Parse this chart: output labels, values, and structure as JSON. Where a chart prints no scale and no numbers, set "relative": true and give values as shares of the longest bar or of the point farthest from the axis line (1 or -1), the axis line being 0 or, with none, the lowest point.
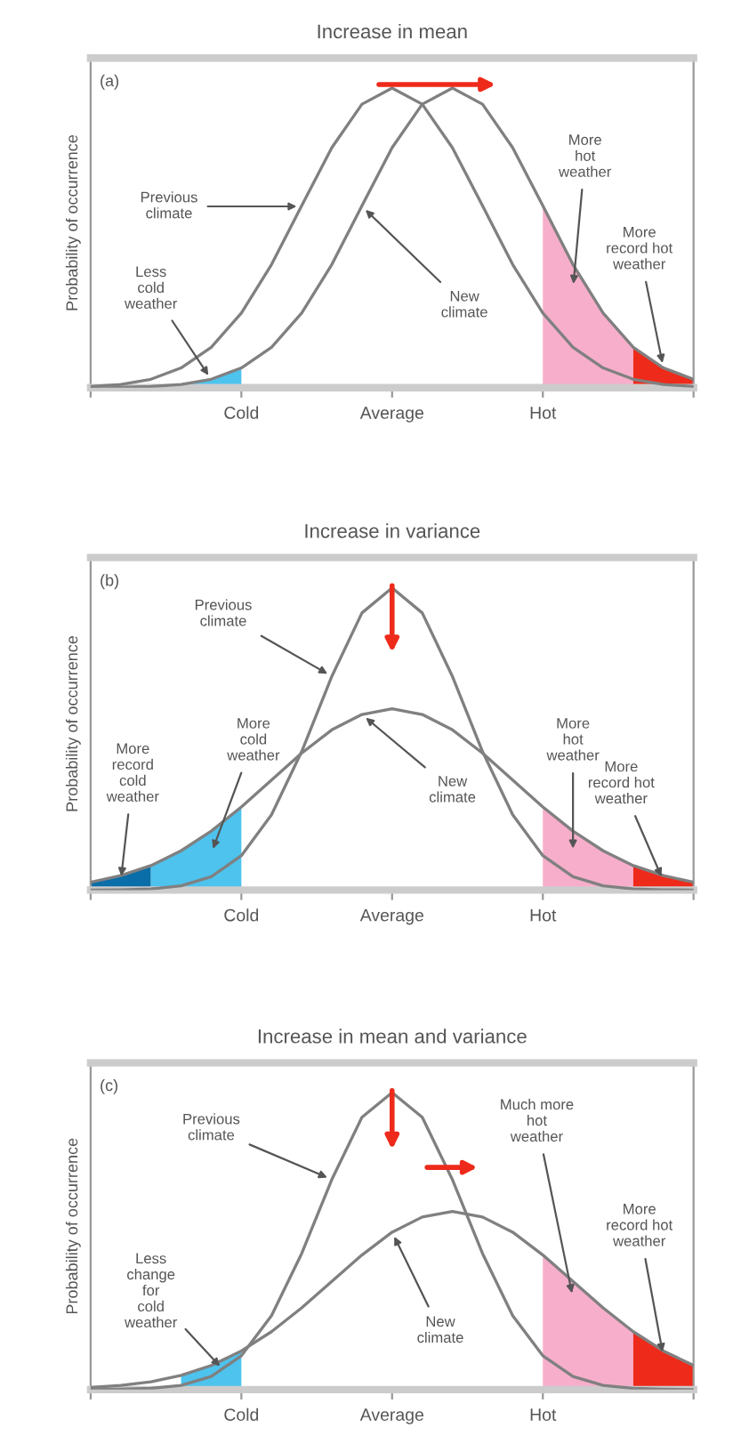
{
  "chart_data": [
    {
      "type": "line",
      "title": "Increase in mean",
      "ylabel": "Probability of occurrence",
      "relative": true,
      "grid": false,
      "marker": "none",
      "line_style": "solid",
      "categories": [
        null,
        null,
        null,
        null,
        null,
        "Cold",
        null,
        null,
        null,
        null,
        "Average",
        null,
        null,
        null,
        null,
        "Hot",
        null,
        null,
        null,
        null,
        null
      ],
      "series": [
        {
          "type": "area",
          "color": "#4dc3ee",
          "values": [
            0,
            0.001,
            0.004,
            0.011,
            0.028,
            0.066,
            null,
            null,
            null,
            null,
            null,
            null,
            null,
            null,
            null,
            null,
            null,
            null,
            null,
            null,
            null
          ]
        },
        {
          "type": "area",
          "color": "#f7aecb",
          "values": [
            null,
            null,
            null,
            null,
            null,
            null,
            null,
            null,
            null,
            null,
            null,
            null,
            null,
            null,
            null,
            0.607,
            0.411,
            0.249,
            0.135,
            null,
            null
          ]
        },
        {
          "type": "area",
          "color": "#ee2a1b",
          "values": [
            null,
            null,
            null,
            null,
            null,
            null,
            null,
            null,
            null,
            null,
            null,
            null,
            null,
            null,
            null,
            null,
            null,
            null,
            0.135,
            0.066,
            0.028
          ]
        },
        {
          "color": "#808080",
          "values": [
            0.004,
            0.011,
            0.028,
            0.066,
            0.135,
            0.249,
            0.411,
            0.607,
            0.801,
            0.946,
            1,
            0.946,
            0.801,
            0.607,
            0.411,
            0.249,
            0.135,
            0.066,
            0.028,
            0.011,
            0.004
          ]
        },
        {
          "color": "#808080",
          "values": [
            0,
            0.001,
            0.004,
            0.011,
            0.028,
            0.066,
            0.135,
            0.249,
            0.411,
            0.607,
            0.801,
            0.946,
            1,
            0.946,
            0.801,
            0.607,
            0.411,
            0.249,
            0.135,
            0.066,
            0.028
          ]
        }
      ],
      "annotations": [
        "(a)",
        "Previous\nclimate",
        "New\nclimate",
        "Less\ncold\nweather",
        "More\nhot\nweather",
        "More\nrecord hot\nweather"
      ]
    },
    {
      "type": "line",
      "title": "Increase in variance",
      "ylabel": "Probability of occurrence",
      "relative": true,
      "grid": false,
      "marker": "none",
      "line_style": "solid",
      "categories": [
        null,
        null,
        null,
        null,
        null,
        "Cold",
        null,
        null,
        null,
        null,
        "Average",
        null,
        null,
        null,
        null,
        "Hot",
        null,
        null,
        null,
        null,
        null
      ],
      "series": [
        {
          "type": "area",
          "color": "#0a6ea8",
          "values": [
            0.026,
            0.048,
            0.081,
            null,
            null,
            null,
            null,
            null,
            null,
            null,
            null,
            null,
            null,
            null,
            null,
            null,
            null,
            null,
            null,
            null,
            null
          ]
        },
        {
          "type": "area",
          "color": "#4dc3ee",
          "values": [
            null,
            null,
            0.081,
            0.13,
            0.195,
            0.275,
            null,
            null,
            null,
            null,
            null,
            null,
            null,
            null,
            null,
            null,
            null,
            null,
            null,
            null,
            null
          ]
        },
        {
          "type": "area",
          "color": "#f7aecb",
          "values": [
            null,
            null,
            null,
            null,
            null,
            null,
            null,
            null,
            null,
            null,
            null,
            null,
            null,
            null,
            null,
            0.275,
            0.195,
            0.13,
            0.081,
            null,
            null
          ]
        },
        {
          "type": "area",
          "color": "#ee2a1b",
          "values": [
            null,
            null,
            null,
            null,
            null,
            null,
            null,
            null,
            null,
            null,
            null,
            null,
            null,
            null,
            null,
            null,
            null,
            null,
            0.081,
            0.048,
            0.026
          ]
        },
        {
          "color": "#808080",
          "values": [
            0,
            0.001,
            0.004,
            0.014,
            0.044,
            0.114,
            0.249,
            0.458,
            0.707,
            0.917,
            1,
            0.917,
            0.707,
            0.458,
            0.249,
            0.114,
            0.044,
            0.014,
            0.004,
            0.001,
            0
          ]
        },
        {
          "color": "#808080",
          "values": [
            0.026,
            0.048,
            0.081,
            0.13,
            0.195,
            0.275,
            0.364,
            0.453,
            0.53,
            0.581,
            0.6,
            0.581,
            0.53,
            0.453,
            0.364,
            0.275,
            0.195,
            0.13,
            0.081,
            0.048,
            0.026
          ]
        }
      ],
      "annotations": [
        "(b)",
        "Previous\nclimate",
        "New\nclimate",
        "More\nrecord\ncold\nweather",
        "More\ncold\nweather",
        "More\nhot\nweather",
        "More\nrecord hot\nweather"
      ]
    },
    {
      "type": "line",
      "title": "Increase in mean and variance",
      "ylabel": "Probability of occurrence",
      "relative": true,
      "grid": false,
      "marker": "none",
      "line_style": "solid",
      "categories": [
        null,
        null,
        null,
        null,
        null,
        "Cold",
        null,
        null,
        null,
        null,
        "Average",
        null,
        null,
        null,
        null,
        "Hot",
        null,
        null,
        null,
        null,
        null
      ],
      "series": [
        {
          "type": "area",
          "color": "#4dc3ee",
          "values": [
            null,
            null,
            null,
            0.048,
            0.081,
            0.13,
            null,
            null,
            null,
            null,
            null,
            null,
            null,
            null,
            null,
            null,
            null,
            null,
            null,
            null,
            null
          ]
        },
        {
          "type": "area",
          "color": "#f7aecb",
          "values": [
            null,
            null,
            null,
            null,
            null,
            null,
            null,
            null,
            null,
            null,
            null,
            null,
            null,
            null,
            null,
            0.453,
            0.364,
            0.275,
            0.195,
            null,
            null
          ]
        },
        {
          "type": "area",
          "color": "#ee2a1b",
          "values": [
            null,
            null,
            null,
            null,
            null,
            null,
            null,
            null,
            null,
            null,
            null,
            null,
            null,
            null,
            null,
            null,
            null,
            null,
            0.195,
            0.13,
            0.081
          ]
        },
        {
          "color": "#808080",
          "values": [
            0,
            0.001,
            0.004,
            0.014,
            0.044,
            0.114,
            0.249,
            0.458,
            0.707,
            0.917,
            1,
            0.917,
            0.707,
            0.458,
            0.249,
            0.114,
            0.044,
            0.014,
            0.004,
            0.001,
            0
          ]
        },
        {
          "color": "#808080",
          "values": [
            0.007,
            0.014,
            0.026,
            0.048,
            0.081,
            0.13,
            0.195,
            0.275,
            0.364,
            0.453,
            0.53,
            0.581,
            0.6,
            0.581,
            0.53,
            0.453,
            0.364,
            0.275,
            0.195,
            0.13,
            0.081
          ]
        }
      ],
      "annotations": [
        "(c)",
        "Previous\nclimate",
        "New\nclimate",
        "Less\nchange\nfor\ncold\nweather",
        "Much more\nhot\nweather",
        "More\nrecord hot\nweather"
      ]
    }
  ]
}
